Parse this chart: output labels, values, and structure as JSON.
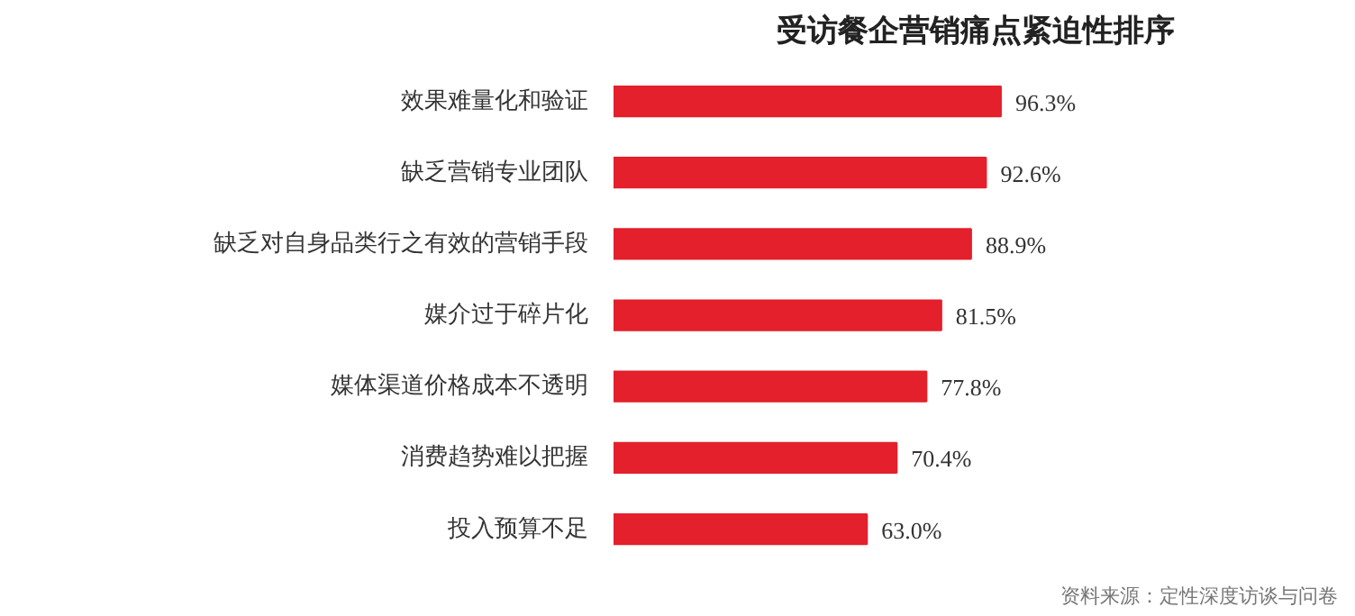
{
  "chart_data": {
    "type": "bar",
    "orientation": "horizontal",
    "title": "受访餐企营销痛点紧迫性排序",
    "categories": [
      "效果难量化和验证",
      "缺乏营销专业团队",
      "缺乏对自身品类行之有效的营销手段",
      "媒介过于碎片化",
      "媒体渠道价格成本不透明",
      "消费趋势难以把握",
      "投入预算不足"
    ],
    "values": [
      96.3,
      92.6,
      88.9,
      81.5,
      77.8,
      70.4,
      63.0
    ],
    "value_labels": [
      "96.3%",
      "92.6%",
      "88.9%",
      "81.5%",
      "77.8%",
      "70.4%",
      "63.0%"
    ],
    "color": "#e3202b",
    "annotations": [
      "资料来源：定性深度访谈与问卷"
    ]
  }
}
